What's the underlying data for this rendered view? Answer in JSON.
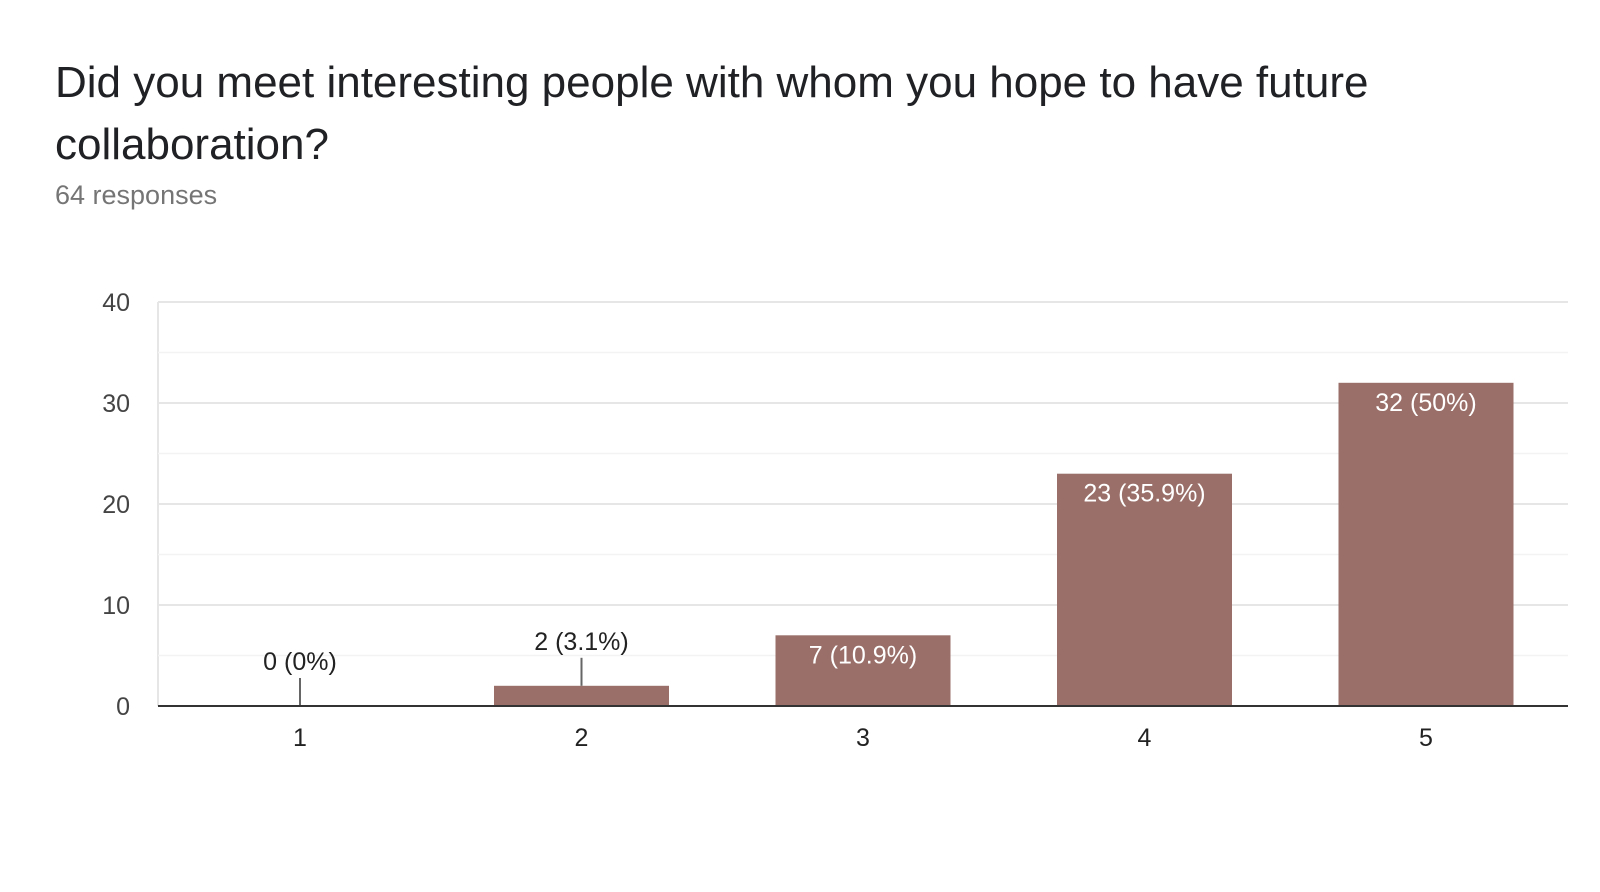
{
  "header": {
    "title": "Did you meet interesting people with whom you hope to have future collaboration?",
    "subtitle": "64 responses"
  },
  "colors": {
    "bar": "#9a6f69",
    "axis": "#333333",
    "grid": "#e6e6e6",
    "minor_grid": "#f3f3f3",
    "tick_text": "#444444",
    "label_inside": "#ffffff",
    "label_outside": "#222222"
  },
  "chart_data": {
    "type": "bar",
    "categories": [
      "1",
      "2",
      "3",
      "4",
      "5"
    ],
    "values": [
      0,
      2,
      7,
      23,
      32
    ],
    "data_labels": [
      "0 (0%)",
      "2 (3.1%)",
      "7 (10.9%)",
      "23 (35.9%)",
      "32 (50%)"
    ],
    "ylim": [
      0,
      40
    ],
    "yticks": [
      0,
      10,
      20,
      30,
      40
    ],
    "grid": true,
    "legend": "none"
  }
}
